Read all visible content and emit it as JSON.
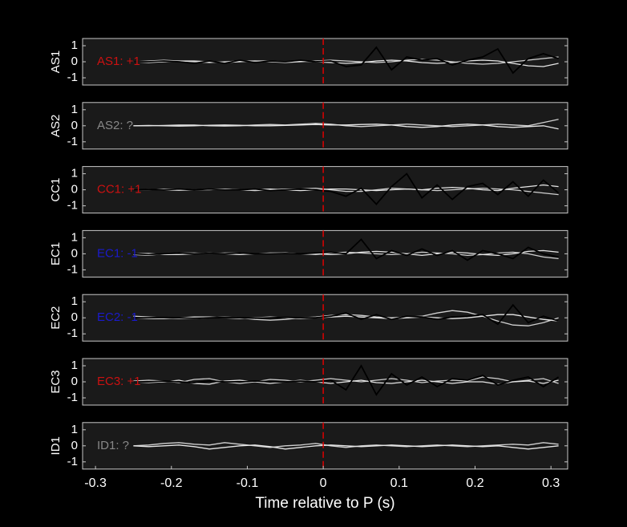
{
  "chart_data": [
    {
      "type": "line",
      "ylabel": "AS1",
      "annotation": "AS1: +1",
      "annotation_color": "#cc1111",
      "xlim": [
        -0.317,
        0.322
      ],
      "ylim": [
        -1.45,
        1.45
      ],
      "yticks": [
        -1,
        0,
        1
      ],
      "vline": 0,
      "vline_color": "#dd0000",
      "x": [
        -0.25,
        -0.23,
        -0.21,
        -0.19,
        -0.17,
        -0.15,
        -0.13,
        -0.11,
        -0.09,
        -0.07,
        -0.05,
        -0.03,
        -0.01,
        0.01,
        0.03,
        0.05,
        0.07,
        0.09,
        0.11,
        0.13,
        0.15,
        0.17,
        0.19,
        0.21,
        0.23,
        0.25,
        0.27,
        0.29,
        0.31
      ],
      "series": [
        {
          "color": "#d0d0d0",
          "values": [
            0,
            0.05,
            0.1,
            0.05,
            0,
            -0.05,
            0,
            0.05,
            0.05,
            0,
            -0.05,
            0,
            0.05,
            0.1,
            0.05,
            0,
            -0.05,
            0,
            0.1,
            0.15,
            0.1,
            0,
            -0.1,
            -0.15,
            -0.1,
            0,
            0.1,
            0.2,
            0.3
          ]
        },
        {
          "color": "#e6e6e6",
          "values": [
            0,
            -0.05,
            0,
            0.05,
            0.05,
            0,
            -0.05,
            0,
            0.05,
            0.05,
            0,
            0.05,
            0,
            -0.05,
            -0.1,
            -0.05,
            0.05,
            0.1,
            0.05,
            -0.05,
            -0.1,
            -0.05,
            0.05,
            0.1,
            0.05,
            -0.1,
            -0.25,
            -0.3,
            -0.1
          ]
        },
        {
          "color": "#000000",
          "values": [
            0,
            0,
            0.05,
            0,
            -0.1,
            0.05,
            -0.1,
            0.1,
            -0.05,
            0.05,
            0,
            0.1,
            0,
            0.05,
            -0.3,
            -0.2,
            0.9,
            -0.5,
            0.3,
            0.1,
            0.2,
            -0.2,
            0.1,
            0.3,
            0.8,
            -0.7,
            0.2,
            0.5,
            0.2
          ]
        }
      ]
    },
    {
      "type": "line",
      "ylabel": "AS2",
      "annotation": "AS2: ?",
      "annotation_color": "#888888",
      "xlim": [
        -0.317,
        0.322
      ],
      "ylim": [
        -1.45,
        1.45
      ],
      "yticks": [
        -1,
        0,
        1
      ],
      "vline": 0,
      "vline_color": "#dd0000",
      "x": [
        -0.25,
        -0.23,
        -0.21,
        -0.19,
        -0.17,
        -0.15,
        -0.13,
        -0.11,
        -0.09,
        -0.07,
        -0.05,
        -0.03,
        -0.01,
        0.01,
        0.03,
        0.05,
        0.07,
        0.09,
        0.11,
        0.13,
        0.15,
        0.17,
        0.19,
        0.21,
        0.23,
        0.25,
        0.27,
        0.29,
        0.31
      ],
      "series": [
        {
          "color": "#d0d0d0",
          "values": [
            0,
            0,
            0.02,
            0.05,
            0.05,
            0,
            -0.02,
            0,
            0.05,
            0.08,
            0.05,
            0.1,
            0.15,
            0.1,
            0,
            -0.05,
            0,
            0.05,
            0.1,
            0.05,
            0,
            -0.05,
            0,
            0.05,
            0.1,
            0.05,
            0,
            0.2,
            0.4
          ]
        },
        {
          "color": "#e6e6e6",
          "values": [
            0,
            0.02,
            0,
            -0.02,
            0,
            0.03,
            0.05,
            0.03,
            0,
            0,
            0.02,
            0.05,
            0.08,
            0.05,
            0.05,
            0.08,
            0.1,
            0.05,
            -0.05,
            -0.1,
            -0.05,
            0.05,
            0.1,
            0.05,
            -0.05,
            -0.1,
            -0.05,
            0,
            -0.2
          ]
        }
      ]
    },
    {
      "type": "line",
      "ylabel": "CC1",
      "annotation": "CC1: +1",
      "annotation_color": "#cc1111",
      "xlim": [
        -0.317,
        0.322
      ],
      "ylim": [
        -1.45,
        1.45
      ],
      "yticks": [
        -1,
        0,
        1
      ],
      "vline": 0,
      "vline_color": "#dd0000",
      "x": [
        -0.25,
        -0.23,
        -0.21,
        -0.19,
        -0.17,
        -0.15,
        -0.13,
        -0.11,
        -0.09,
        -0.07,
        -0.05,
        -0.03,
        -0.01,
        0.01,
        0.03,
        0.05,
        0.07,
        0.09,
        0.11,
        0.13,
        0.15,
        0.17,
        0.19,
        0.21,
        0.23,
        0.25,
        0.27,
        0.29,
        0.31
      ],
      "series": [
        {
          "color": "#d0d0d0",
          "values": [
            0,
            0,
            0.05,
            0.05,
            0,
            0,
            0.05,
            0,
            -0.05,
            0,
            0.05,
            0.05,
            0.1,
            0,
            -0.1,
            -0.1,
            0,
            0.1,
            0.05,
            0,
            -0.05,
            0,
            0.05,
            0.1,
            0.05,
            0,
            -0.1,
            -0.2,
            -0.3
          ]
        },
        {
          "color": "#e6e6e6",
          "values": [
            0,
            0.03,
            0,
            -0.03,
            0,
            0.05,
            0.05,
            0,
            0,
            0.05,
            0,
            -0.05,
            0,
            0.05,
            0.05,
            0,
            -0.05,
            0,
            0.05,
            0,
            0.1,
            0.15,
            0.1,
            0,
            -0.05,
            0.1,
            0.2,
            0.3,
            0.2
          ]
        },
        {
          "color": "#000000",
          "values": [
            0,
            0.02,
            0,
            0.05,
            0,
            0.05,
            0,
            0,
            0.05,
            -0.05,
            0,
            0.05,
            0,
            -0.1,
            -0.4,
            0.1,
            -0.9,
            0.2,
            1.0,
            -0.5,
            0.3,
            -0.6,
            0.2,
            0.4,
            -0.3,
            0.5,
            -0.4,
            0.6,
            -0.2
          ]
        }
      ]
    },
    {
      "type": "line",
      "ylabel": "EC1",
      "annotation": "EC1: -1",
      "annotation_color": "#1a1acc",
      "xlim": [
        -0.317,
        0.322
      ],
      "ylim": [
        -1.45,
        1.45
      ],
      "yticks": [
        -1,
        0,
        1
      ],
      "vline": 0,
      "vline_color": "#dd0000",
      "x": [
        -0.25,
        -0.23,
        -0.21,
        -0.19,
        -0.17,
        -0.15,
        -0.13,
        -0.11,
        -0.09,
        -0.07,
        -0.05,
        -0.03,
        -0.01,
        0.01,
        0.03,
        0.05,
        0.07,
        0.09,
        0.11,
        0.13,
        0.15,
        0.17,
        0.19,
        0.21,
        0.23,
        0.25,
        0.27,
        0.29,
        0.31
      ],
      "series": [
        {
          "color": "#d0d0d0",
          "values": [
            -0.05,
            -0.1,
            0,
            0.05,
            0.05,
            0,
            0.05,
            0.05,
            0,
            0,
            0.05,
            0,
            -0.05,
            0.05,
            0.1,
            0.05,
            0,
            -0.05,
            0,
            0.1,
            0.05,
            0,
            -0.1,
            -0.05,
            0.05,
            0.1,
            0,
            -0.2,
            -0.3
          ]
        },
        {
          "color": "#e6e6e6",
          "values": [
            0,
            0.02,
            -0.05,
            -0.05,
            0,
            0.05,
            0,
            -0.05,
            0,
            0.05,
            0.05,
            0,
            0,
            -0.05,
            0,
            0.1,
            0.15,
            0.1,
            0,
            -0.1,
            0,
            0.1,
            0.05,
            -0.05,
            -0.1,
            0,
            0.15,
            0.2,
            0.1
          ]
        },
        {
          "color": "#000000",
          "values": [
            0,
            -0.05,
            0,
            0.05,
            0,
            0.03,
            0,
            0.05,
            0,
            0,
            0.02,
            0,
            0.05,
            0.1,
            0,
            0.9,
            -0.3,
            0.2,
            -0.1,
            0.3,
            -0.1,
            0.2,
            -0.4,
            0.2,
            0,
            -0.3,
            0.4,
            0,
            -0.2
          ]
        }
      ]
    },
    {
      "type": "line",
      "ylabel": "EC2",
      "annotation": "EC2: -1",
      "annotation_color": "#1a1acc",
      "xlim": [
        -0.317,
        0.322
      ],
      "ylim": [
        -1.45,
        1.45
      ],
      "yticks": [
        -1,
        0,
        1
      ],
      "vline": 0,
      "vline_color": "#dd0000",
      "x": [
        -0.25,
        -0.23,
        -0.21,
        -0.19,
        -0.17,
        -0.15,
        -0.13,
        -0.11,
        -0.09,
        -0.07,
        -0.05,
        -0.03,
        -0.01,
        0.01,
        0.03,
        0.05,
        0.07,
        0.09,
        0.11,
        0.13,
        0.15,
        0.17,
        0.19,
        0.21,
        0.23,
        0.25,
        0.27,
        0.29,
        0.31
      ],
      "series": [
        {
          "color": "#d0d0d0",
          "values": [
            0.1,
            0.05,
            0,
            -0.05,
            -0.05,
            0,
            0.05,
            0,
            -0.1,
            -0.15,
            -0.1,
            0,
            0.05,
            0.15,
            0.2,
            0.15,
            0.05,
            0,
            0.05,
            0.1,
            0.3,
            0.45,
            0.35,
            0.1,
            -0.2,
            -0.45,
            -0.5,
            -0.3,
            0
          ]
        },
        {
          "color": "#e6e6e6",
          "values": [
            0,
            -0.05,
            -0.05,
            0,
            0.05,
            0.05,
            0,
            -0.05,
            0,
            0.05,
            0,
            -0.05,
            0,
            0.05,
            0.1,
            0.05,
            0,
            -0.05,
            0,
            0.05,
            0,
            -0.05,
            0,
            0.1,
            0.2,
            0.2,
            0.05,
            -0.1,
            -0.2
          ]
        },
        {
          "color": "#000000",
          "values": [
            0,
            0,
            0.02,
            0,
            -0.03,
            0,
            0.02,
            0,
            -0.02,
            0,
            0.03,
            0,
            0,
            0.1,
            0.3,
            -0.1,
            0.2,
            -0.1,
            0.1,
            0.05,
            -0.1,
            0.05,
            0.1,
            0.2,
            -0.4,
            0.8,
            -0.3,
            0.1,
            -0.2
          ]
        }
      ]
    },
    {
      "type": "line",
      "ylabel": "EC3",
      "annotation": "EC3: +1",
      "annotation_color": "#cc1111",
      "xlim": [
        -0.317,
        0.322
      ],
      "ylim": [
        -1.45,
        1.45
      ],
      "yticks": [
        -1,
        0,
        1
      ],
      "vline": 0,
      "vline_color": "#dd0000",
      "x": [
        -0.25,
        -0.23,
        -0.21,
        -0.19,
        -0.17,
        -0.15,
        -0.13,
        -0.11,
        -0.09,
        -0.07,
        -0.05,
        -0.03,
        -0.01,
        0.01,
        0.03,
        0.05,
        0.07,
        0.09,
        0.11,
        0.13,
        0.15,
        0.17,
        0.19,
        0.21,
        0.23,
        0.25,
        0.27,
        0.29,
        0.31
      ],
      "series": [
        {
          "color": "#d0d0d0",
          "values": [
            0.05,
            0.1,
            0.05,
            -0.05,
            0.15,
            0.2,
            0,
            -0.1,
            0,
            0.15,
            0.1,
            0,
            0.1,
            0.2,
            0.1,
            0,
            0.1,
            0.2,
            0.1,
            -0.05,
            0.05,
            0.1,
            0.05,
            0.3,
            0.2,
            0,
            0.1,
            0.2,
            -0.1
          ]
        },
        {
          "color": "#e6e6e6",
          "values": [
            0,
            -0.05,
            0,
            0.1,
            -0.1,
            -0.15,
            0.05,
            0.1,
            0,
            -0.1,
            0,
            0.1,
            0,
            -0.1,
            0,
            0.1,
            -0.05,
            -0.1,
            0,
            0.1,
            0,
            -0.1,
            0,
            0,
            -0.15,
            0,
            0.05,
            -0.1,
            0.1
          ]
        },
        {
          "color": "#000000",
          "values": [
            0,
            0,
            0.05,
            0,
            -0.05,
            0.05,
            0,
            0,
            0.05,
            0,
            0,
            0.05,
            0,
            0.1,
            -0.5,
            1.0,
            -0.8,
            0.5,
            -0.2,
            0.3,
            -0.3,
            0.2,
            0.1,
            0.4,
            -0.2,
            0.1,
            0.3,
            -0.3,
            0.3
          ]
        }
      ]
    },
    {
      "type": "line",
      "ylabel": "ID1",
      "annotation": "ID1: ?",
      "annotation_color": "#888888",
      "xlim": [
        -0.317,
        0.322
      ],
      "ylim": [
        -1.45,
        1.45
      ],
      "yticks": [
        -1,
        0,
        1
      ],
      "vline": 0,
      "vline_color": "#dd0000",
      "xticks": [
        -0.3,
        -0.2,
        -0.1,
        0,
        0.1,
        0.2,
        0.3
      ],
      "xlabel": "Time relative to P (s)",
      "x": [
        -0.25,
        -0.23,
        -0.21,
        -0.19,
        -0.17,
        -0.15,
        -0.13,
        -0.11,
        -0.09,
        -0.07,
        -0.05,
        -0.03,
        -0.01,
        0.01,
        0.03,
        0.05,
        0.07,
        0.09,
        0.11,
        0.13,
        0.15,
        0.17,
        0.19,
        0.21,
        0.23,
        0.25,
        0.27,
        0.29,
        0.31
      ],
      "series": [
        {
          "color": "#d0d0d0",
          "values": [
            0,
            0.05,
            0.15,
            0.2,
            0.1,
            0.05,
            0.2,
            0.1,
            0,
            -0.1,
            0,
            0.05,
            0.15,
            0,
            -0.1,
            0,
            0.05,
            0,
            -0.05,
            0,
            0.05,
            0,
            -0.05,
            0,
            0.05,
            0.1,
            0.05,
            0.2,
            0.1
          ]
        },
        {
          "color": "#e6e6e6",
          "values": [
            0,
            -0.05,
            0,
            0.05,
            -0.05,
            -0.2,
            -0.1,
            0,
            0.05,
            -0.05,
            -0.2,
            -0.1,
            0,
            0.05,
            0,
            -0.05,
            0,
            0.05,
            0,
            -0.05,
            0,
            0.05,
            0,
            -0.05,
            0,
            -0.1,
            -0.2,
            -0.1,
            0
          ]
        }
      ]
    }
  ]
}
